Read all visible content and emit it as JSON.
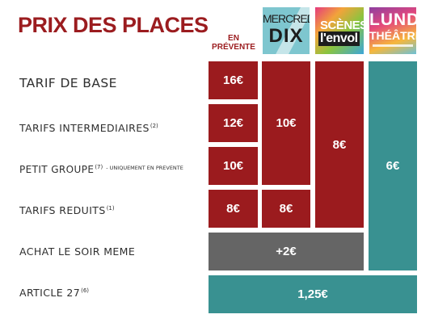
{
  "title": "PRIX DES PLACES",
  "presale_header": "EN\nPRÉVENTE",
  "logos": {
    "mercredix": {
      "top": "MERCREDI",
      "bottom": "DIX"
    },
    "scenes_envol": {
      "top": "SCÈNES",
      "bottom": "l'envol"
    },
    "lundi_theatre": {
      "top": "LUNDI",
      "bottom": "THÉÂTRE"
    }
  },
  "rows": {
    "base": {
      "label": "TARIF DE BASE"
    },
    "intermediaires": {
      "label": "TARIFS INTERMEDIAIRES",
      "ref": "(2)"
    },
    "petit_groupe": {
      "label": "PETIT GROUPE",
      "ref": "(7)",
      "note": "- UNIQUEMENT EN PREVENTE"
    },
    "reduits": {
      "label": "TARIFS REDUITS",
      "ref": "(1)"
    },
    "soir_meme": {
      "label": "ACHAT LE SOIR MEME"
    },
    "article27": {
      "label": "ARTICLE 27",
      "ref": "(6)"
    }
  },
  "prices": {
    "presale_base": "16€",
    "presale_intermediaires": "12€",
    "presale_groupe": "10€",
    "presale_reduits": "8€",
    "mercredix": "10€",
    "mercredix_reduits": "8€",
    "scenes_envol": "8€",
    "lundi_theatre": "6€",
    "soir_meme_supplement": "+2€",
    "article27": "1,25€"
  },
  "colors": {
    "red": "#9b1b1e",
    "teal": "#399191",
    "grey": "#656565",
    "title": "#9b1c1f"
  }
}
